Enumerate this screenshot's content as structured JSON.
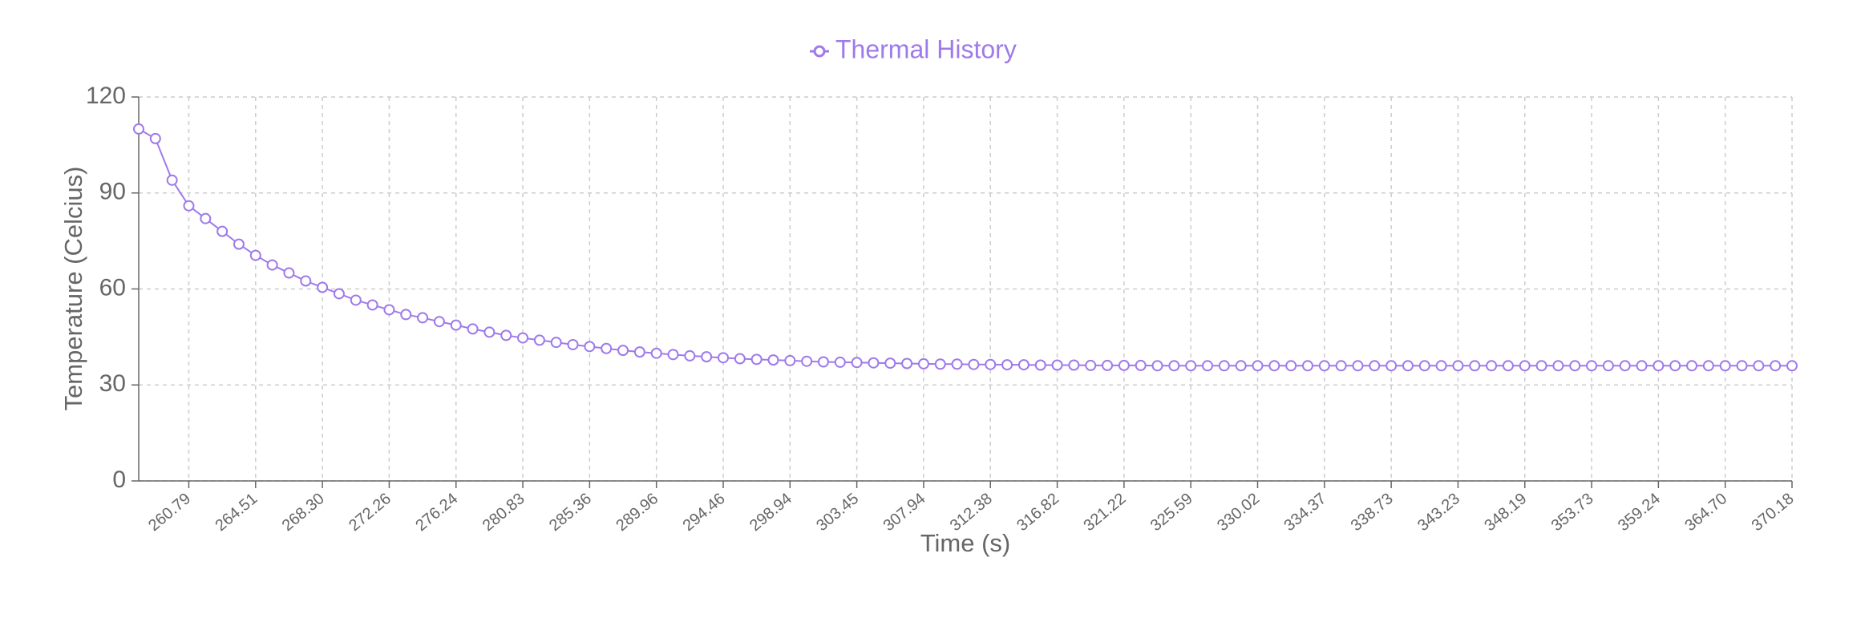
{
  "chart_data": {
    "type": "line",
    "x_label": "Time (s)",
    "y_label": "Temperature (Celcius)",
    "categories": [
      null,
      null,
      null,
      "260.79",
      null,
      null,
      null,
      "264.51",
      null,
      null,
      null,
      "268.30",
      null,
      null,
      null,
      "272.26",
      null,
      null,
      null,
      "276.24",
      null,
      null,
      null,
      "280.83",
      null,
      null,
      null,
      "285.36",
      null,
      null,
      null,
      "289.96",
      null,
      null,
      null,
      "294.46",
      null,
      null,
      null,
      "298.94",
      null,
      null,
      null,
      "303.45",
      null,
      null,
      null,
      "307.94",
      null,
      null,
      null,
      "312.38",
      null,
      null,
      null,
      "316.82",
      null,
      null,
      null,
      "321.22",
      null,
      null,
      null,
      "325.59",
      null,
      null,
      null,
      "330.02",
      null,
      null,
      null,
      "334.37",
      null,
      null,
      null,
      "338.73",
      null,
      null,
      null,
      "343.23",
      null,
      null,
      null,
      "348.19",
      null,
      null,
      null,
      "353.73",
      null,
      null,
      null,
      "359.24",
      null,
      null,
      null,
      "364.70",
      null,
      null,
      null,
      "370.18"
    ],
    "series": [
      {
        "name": "Thermal History",
        "color": "#9f7aea",
        "values": [
          110,
          107,
          94,
          86,
          82,
          78,
          74,
          70.5,
          67.5,
          65,
          62.5,
          60.5,
          58.5,
          56.5,
          55,
          53.5,
          52,
          51,
          49.8,
          48.7,
          47.5,
          46.5,
          45.5,
          44.7,
          44,
          43.3,
          42.6,
          42,
          41.4,
          40.8,
          40.3,
          39.9,
          39.5,
          39.1,
          38.8,
          38.5,
          38.2,
          38,
          37.8,
          37.6,
          37.4,
          37.2,
          37.1,
          37,
          36.9,
          36.8,
          36.7,
          36.6,
          36.5,
          36.5,
          36.4,
          36.4,
          36.3,
          36.3,
          36.2,
          36.2,
          36.2,
          36.1,
          36.1,
          36.1,
          36.1,
          36,
          36,
          36,
          36,
          36,
          36,
          36,
          36,
          36,
          36,
          36,
          36,
          36,
          36,
          36,
          36,
          36,
          36,
          36,
          36,
          36,
          36,
          36,
          36,
          36,
          36,
          36,
          36,
          36,
          36,
          36,
          36,
          36,
          36,
          36,
          36,
          36,
          36,
          36
        ]
      }
    ],
    "ylim": [
      0,
      120
    ],
    "yticks": [
      0,
      30,
      60,
      90,
      120
    ],
    "grid": true,
    "legend": "top"
  }
}
